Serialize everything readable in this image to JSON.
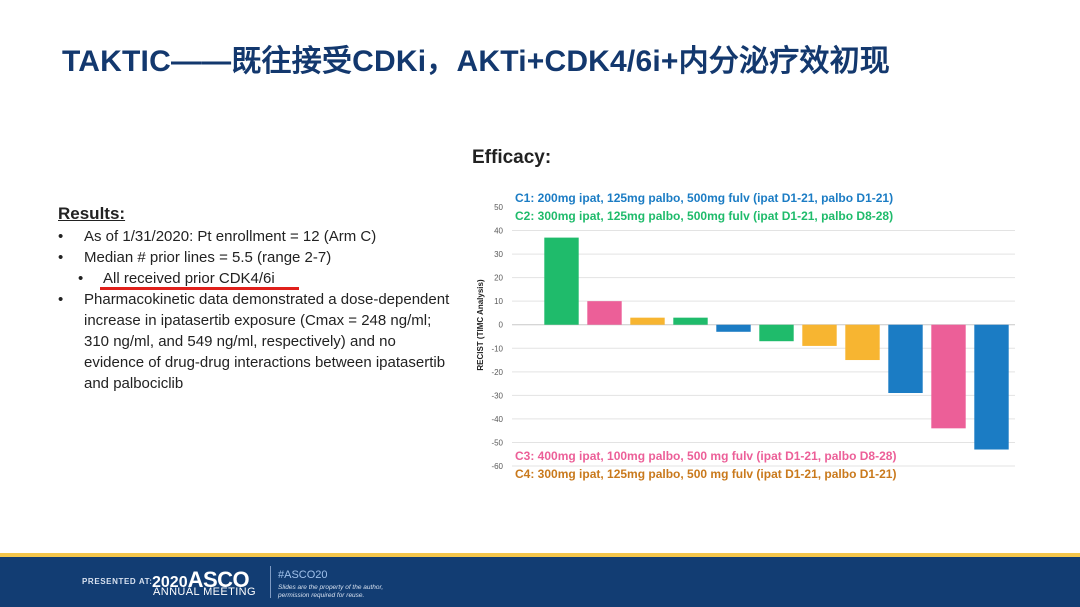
{
  "slide": {
    "title": "TAKTIC——既往接受CDKi，AKTi+CDK4/6i+内分泌疗效初现"
  },
  "results": {
    "heading": "Results:",
    "items": [
      "As of 1/31/2020: Pt enrollment = 12 (Arm C)",
      "Median # prior lines = 5.5 (range 2-7)",
      "All received prior CDK4/6i",
      "Pharmacokinetic data demonstrated a dose-dependent increase in ipatasertib exposure (Cmax = 248 ng/ml; 310 ng/ml, and 549 ng/ml, respectively) and no evidence of drug-drug interactions between ipatasertib and palbociclib"
    ],
    "underline_color": "#e0201b"
  },
  "efficacy": {
    "heading": "Efficacy:"
  },
  "chart_data": {
    "type": "bar",
    "ylabel": "RECIST (TIMC Analysis)",
    "ylim": [
      -60,
      50
    ],
    "yticks": [
      50,
      40,
      30,
      20,
      10,
      0,
      -10,
      -20,
      -30,
      -40,
      -50,
      -60
    ],
    "grid": true,
    "legend_placement": "top-left and bottom-left",
    "series": [
      {
        "name": "C1: 200mg ipat, 125mg palbo, 500mg fulv (ipat D1-21, palbo D1-21)",
        "color": "#1b7cc4"
      },
      {
        "name": "C2: 300mg ipat, 125mg palbo, 500mg fulv (ipat D1-21, palbo D8-28)",
        "color": "#1fbb6b"
      },
      {
        "name": "C3: 400mg ipat, 100mg palbo, 500 mg fulv (ipat D1-21, palbo D8-28)",
        "color": "#ec5f98"
      },
      {
        "name": "C4: 300mg ipat, 125mg palbo, 500 mg fulv (ipat D1-21, palbo D1-21)",
        "color": "#c9791c"
      }
    ],
    "bars": [
      {
        "value": 37,
        "color": "#1fbb6b"
      },
      {
        "value": 10,
        "color": "#ec5f98"
      },
      {
        "value": 3,
        "color": "#f7b531"
      },
      {
        "value": 3,
        "color": "#1fbb6b"
      },
      {
        "value": -3,
        "color": "#1b7cc4"
      },
      {
        "value": -7,
        "color": "#1fbb6b"
      },
      {
        "value": -9,
        "color": "#f7b531"
      },
      {
        "value": -15,
        "color": "#f7b531"
      },
      {
        "value": -29,
        "color": "#1b7cc4"
      },
      {
        "value": -44,
        "color": "#ec5f98"
      },
      {
        "value": -53,
        "color": "#1b7cc4"
      }
    ]
  },
  "footer": {
    "presented_at": "PRESENTED AT:",
    "year": "2020",
    "org": "ASCO",
    "meeting": "ANNUAL MEETING",
    "hashtag": "#ASCO20",
    "disclaimer": "Slides are the property of the author, permission required for reuse.",
    "bar_color": "#123d73",
    "stripe_color": "#f4c64b"
  }
}
